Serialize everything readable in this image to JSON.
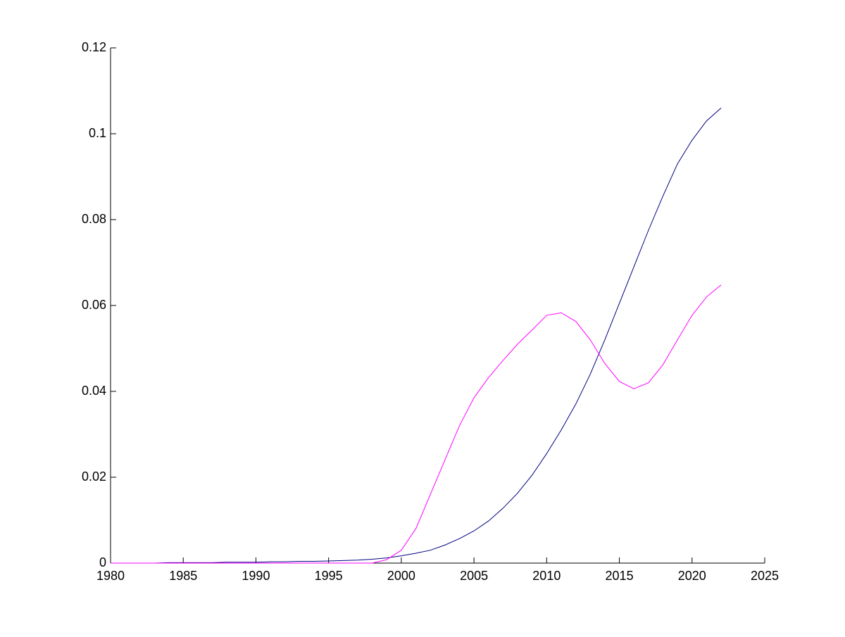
{
  "chart_data": {
    "type": "line",
    "x": [
      1980,
      1981,
      1982,
      1983,
      1984,
      1985,
      1986,
      1987,
      1988,
      1989,
      1990,
      1991,
      1992,
      1993,
      1994,
      1995,
      1996,
      1997,
      1998,
      1999,
      2000,
      2001,
      2002,
      2003,
      2004,
      2005,
      2006,
      2007,
      2008,
      2009,
      2010,
      2011,
      2012,
      2013,
      2014,
      2015,
      2016,
      2017,
      2018,
      2019,
      2020,
      2021,
      2022
    ],
    "series": [
      {
        "color": "#000080",
        "values": [
          0,
          0,
          0,
          0,
          0.0001,
          0.0001,
          0.0001,
          0.0001,
          0.0002,
          0.0002,
          0.0002,
          0.0003,
          0.0003,
          0.0004,
          0.0004,
          0.0005,
          0.0006,
          0.0007,
          0.0009,
          0.0012,
          0.0017,
          0.0023,
          0.003,
          0.0042,
          0.0057,
          0.0075,
          0.0098,
          0.0128,
          0.0163,
          0.0205,
          0.0255,
          0.031,
          0.037,
          0.044,
          0.052,
          0.0605,
          0.069,
          0.0775,
          0.0855,
          0.093,
          0.0985,
          0.103,
          0.106
        ]
      },
      {
        "color": "#ff00ff",
        "values": [
          0,
          0,
          0,
          0,
          0,
          0,
          0,
          0,
          0,
          0,
          0,
          0,
          0,
          0,
          0,
          0,
          0,
          0,
          0,
          0.0008,
          0.003,
          0.008,
          0.016,
          0.024,
          0.032,
          0.0385,
          0.0432,
          0.0472,
          0.051,
          0.0543,
          0.0577,
          0.0583,
          0.0563,
          0.052,
          0.0465,
          0.0423,
          0.0406,
          0.042,
          0.0462,
          0.052,
          0.0577,
          0.062,
          0.0648
        ]
      }
    ],
    "xlim": [
      1980,
      2025
    ],
    "xticks": [
      1980,
      1985,
      1990,
      1995,
      2000,
      2005,
      2010,
      2015,
      2020,
      2025
    ],
    "ylim": [
      0,
      0.12
    ],
    "yticks": [
      0,
      0.02,
      0.04,
      0.06,
      0.08,
      0.1,
      0.12
    ]
  }
}
